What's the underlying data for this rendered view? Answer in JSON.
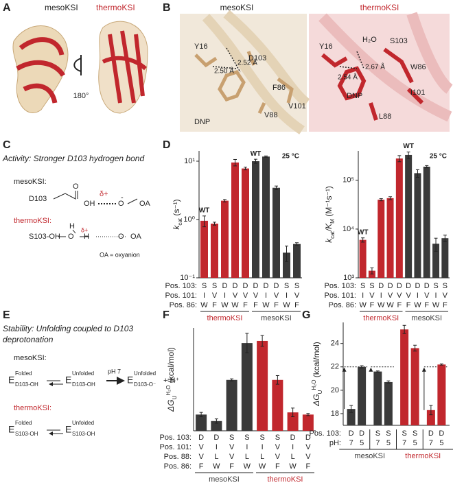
{
  "panels": {
    "A": {
      "letter": "A",
      "meso": "mesoKSI",
      "thermo": "thermoKSI",
      "rotation": "180°"
    },
    "B": {
      "letter": "B",
      "meso": {
        "title": "mesoKSI",
        "labels": [
          "Y16",
          "D103",
          "F86",
          "V101",
          "DNP",
          "V88"
        ],
        "distances": [
          "2.50 Å",
          "2.52 Å"
        ]
      },
      "thermo": {
        "title": "thermoKSI",
        "labels": [
          "Y16",
          "H₂O",
          "S103",
          "W86",
          "I101",
          "DNP",
          "L88"
        ],
        "distances": [
          "2.54 Å",
          "2.67 Å"
        ]
      }
    },
    "C": {
      "letter": "C",
      "title": "Activity: Stronger D103 hydrogen bond",
      "meso_label": "mesoKSI:",
      "meso_scheme": [
        "D103",
        "O",
        "OH",
        "δ+",
        "O",
        "-",
        "OA"
      ],
      "thermo_label": "thermoKSI:",
      "thermo_scheme": [
        "S103-OH",
        "H",
        "O",
        "δ+",
        "H",
        "O",
        "OA"
      ],
      "note": "OA = oxyanion"
    },
    "D": {
      "letter": "D"
    },
    "E": {
      "letter": "E",
      "title_lines": [
        "Stability: Unfolding coupled to D103",
        "deprotonation"
      ],
      "meso_label": "mesoKSI:",
      "meso_states": [
        {
          "E": "E",
          "sup": "Folded",
          "sub": "D103-OH"
        },
        {
          "E": "E",
          "sup": "Unfolded",
          "sub": "D103-OH"
        },
        {
          "E": "E",
          "sup": "Unfolded",
          "sub": "D103-O⁻"
        }
      ],
      "meso_condition": "pH 7",
      "meso_product": "+ H⁺",
      "thermo_label": "thermoKSI:",
      "thermo_states": [
        {
          "E": "E",
          "sup": "Folded",
          "sub": "S103-OH"
        },
        {
          "E": "E",
          "sup": "Unfolded",
          "sub": "S103-OH"
        }
      ]
    },
    "F": {
      "letter": "F"
    },
    "G": {
      "letter": "G"
    }
  },
  "chart_data": [
    {
      "type": "bar",
      "log_y": true,
      "ylabel": [
        {
          "text": "k",
          "style": "italic"
        },
        {
          "text": "cat",
          "style": "sub"
        },
        {
          "text": " (s⁻¹)",
          "style": "normal"
        }
      ],
      "annotation": "25 °C",
      "ylim": [
        0.1,
        15
      ],
      "yticks": [
        {
          "value": 0.1,
          "label": "10⁻¹"
        },
        {
          "value": 1,
          "label": "10⁰"
        },
        {
          "value": 10,
          "label": "10¹"
        }
      ],
      "values": [
        0.95,
        0.85,
        2.1,
        9.5,
        7.5,
        10,
        12,
        3.5,
        0.27,
        0.38
      ],
      "errors": [
        0.2,
        0.05,
        0.1,
        1.2,
        0.4,
        0.8,
        0.3,
        0.25,
        0.08,
        0.02
      ],
      "colors": [
        "#c1272d",
        "#c1272d",
        "#c1272d",
        "#c1272d",
        "#c1272d",
        "#3a3a3a",
        "#3a3a3a",
        "#3a3a3a",
        "#3a3a3a",
        "#3a3a3a"
      ],
      "bar_labels": [
        "WT",
        null,
        null,
        null,
        null,
        "WT",
        null,
        null,
        null,
        null
      ],
      "rows": [
        {
          "label": "Pos. 103:",
          "values": [
            "S",
            "S",
            "D",
            "D",
            "D",
            "D",
            "D",
            "D",
            "S",
            "S"
          ]
        },
        {
          "label": "Pos. 101:",
          "values": [
            "I",
            "V",
            "I",
            "V",
            "V",
            "V",
            "I",
            "V",
            "I",
            "V"
          ]
        },
        {
          "label": "Pos. 86:",
          "values": [
            "W",
            "F",
            "W",
            "W",
            "F",
            "F",
            "W",
            "F",
            "W",
            "F"
          ]
        }
      ],
      "groups": [
        {
          "label": "thermoKSI",
          "color": "#c1272d"
        },
        {
          "label": "mesoKSI",
          "color": "#3a3a3a"
        }
      ]
    },
    {
      "type": "bar",
      "log_y": true,
      "ylabel": [
        {
          "text": "k",
          "style": "italic"
        },
        {
          "text": "cat",
          "style": "sub"
        },
        {
          "text": "/K",
          "style": "italic"
        },
        {
          "text": "M",
          "style": "sub"
        },
        {
          "text": " (M⁻¹s⁻¹)",
          "style": "normal"
        }
      ],
      "annotation": "25 °C",
      "ylim": [
        1000,
        400000
      ],
      "yticks": [
        {
          "value": 1000,
          "label": "10³"
        },
        {
          "value": 10000,
          "label": "10⁴"
        },
        {
          "value": 100000,
          "label": "10⁵"
        }
      ],
      "values": [
        6000,
        1400,
        40000,
        43000,
        280000,
        330000,
        140000,
        190000,
        5000,
        6500
      ],
      "errors": [
        600,
        200,
        2000,
        3000,
        40000,
        50000,
        25000,
        10000,
        1500,
        1000
      ],
      "colors": [
        "#c1272d",
        "#c1272d",
        "#c1272d",
        "#c1272d",
        "#c1272d",
        "#3a3a3a",
        "#3a3a3a",
        "#3a3a3a",
        "#3a3a3a",
        "#3a3a3a"
      ],
      "bar_labels": [
        "WT",
        null,
        null,
        null,
        null,
        "WT",
        null,
        null,
        null,
        null
      ],
      "rows": [
        {
          "label": "Pos. 103:",
          "values": [
            "S",
            "S",
            "D",
            "D",
            "D",
            "D",
            "D",
            "D",
            "S",
            "S"
          ]
        },
        {
          "label": "Pos. 101:",
          "values": [
            "I",
            "V",
            "I",
            "V",
            "V",
            "V",
            "I",
            "V",
            "I",
            "V"
          ]
        },
        {
          "label": "Pos. 86:",
          "values": [
            "W",
            "F",
            "W",
            "W",
            "F",
            "F",
            "W",
            "F",
            "W",
            "F"
          ]
        }
      ],
      "groups": [
        {
          "label": "thermoKSI",
          "color": "#c1272d"
        },
        {
          "label": "mesoKSI",
          "color": "#3a3a3a"
        }
      ]
    },
    {
      "type": "bar",
      "log_y": false,
      "ylabel": [
        {
          "text": "ΔG",
          "style": "italic"
        },
        {
          "text": "U",
          "style": "sub"
        },
        {
          "text": "H₂O",
          "style": "sup"
        },
        {
          "text": " (kcal/mol)",
          "style": "normal"
        }
      ],
      "ylim": [
        17,
        26.5
      ],
      "values": [
        18.5,
        17.9,
        21.7,
        25.1,
        25.3,
        21.7,
        18.7,
        18.5
      ],
      "errors": [
        0.2,
        0.2,
        0.1,
        0.9,
        0.5,
        0.4,
        0.4,
        0.1
      ],
      "colors": [
        "#3a3a3a",
        "#3a3a3a",
        "#3a3a3a",
        "#3a3a3a",
        "#c1272d",
        "#c1272d",
        "#c1272d",
        "#c1272d"
      ],
      "rows": [
        {
          "label": "Pos. 103:",
          "values": [
            "D",
            "D",
            "S",
            "S",
            "S",
            "S",
            "D",
            "D"
          ]
        },
        {
          "label": "Pos. 101:",
          "values": [
            "V",
            "I",
            "V",
            "I",
            "I",
            "V",
            "I",
            "V"
          ]
        },
        {
          "label": "Pos. 88:",
          "values": [
            "V",
            "L",
            "V",
            "L",
            "L",
            "V",
            "L",
            "V"
          ]
        },
        {
          "label": "Pos. 86:",
          "values": [
            "F",
            "W",
            "F",
            "W",
            "W",
            "F",
            "W",
            "F"
          ]
        }
      ],
      "groups": [
        {
          "label": "mesoKSI",
          "color": "#3a3a3a"
        },
        {
          "label": "thermoKSI",
          "color": "#c1272d"
        }
      ]
    },
    {
      "type": "paired_bar",
      "log_y": false,
      "ylabel": [
        {
          "text": "ΔG",
          "style": "italic"
        },
        {
          "text": "U",
          "style": "sub"
        },
        {
          "text": "H₂O",
          "style": "sup"
        },
        {
          "text": " (kcal/mol)",
          "style": "normal"
        }
      ],
      "ylim": [
        17,
        25.8
      ],
      "yticks": [
        18,
        20,
        22,
        24
      ],
      "values": [
        18.4,
        22,
        21.6,
        20.7,
        25.2,
        23.6,
        18.3,
        22.2
      ],
      "errors": [
        0.3,
        0.1,
        0.05,
        0.1,
        0.35,
        0.25,
        0.4,
        0.05
      ],
      "reference_line": 22,
      "colors": [
        "#3a3a3a",
        "#3a3a3a",
        "#3a3a3a",
        "#3a3a3a",
        "#c1272d",
        "#c1272d",
        "#c1272d",
        "#c1272d"
      ],
      "rows": [
        {
          "label": "Pos. 103:",
          "values": [
            "D",
            "D",
            "S",
            "S",
            "S",
            "S",
            "D",
            "D"
          ]
        },
        {
          "label": "pH:",
          "values": [
            "7",
            "5",
            "7",
            "5",
            "7",
            "5",
            "7",
            "5"
          ]
        }
      ],
      "groups": [
        {
          "label": "mesoKSI",
          "color": "#3a3a3a"
        },
        {
          "label": "thermoKSI",
          "color": "#c1272d"
        }
      ]
    }
  ]
}
